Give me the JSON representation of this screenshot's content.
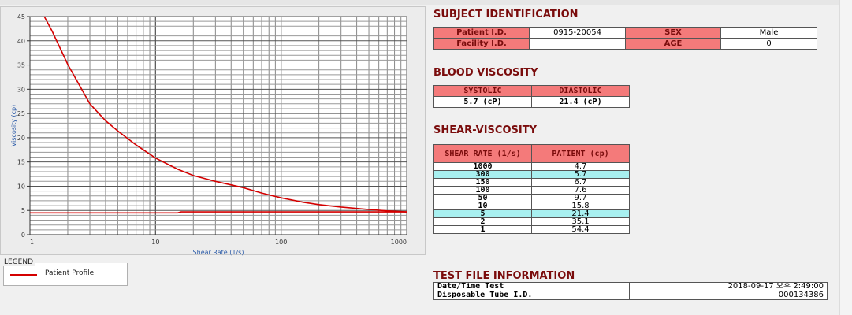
{
  "chart_data": {
    "type": "line",
    "xscale": "log",
    "xlim": [
      1,
      1000
    ],
    "ylim": [
      0,
      45
    ],
    "xlabel": "Shear Rate (1/s)",
    "ylabel": "Viscosity (cp)",
    "x_ticks": [
      "1",
      "10",
      "100",
      "1000"
    ],
    "y_ticks": [
      "0",
      "5",
      "10",
      "15",
      "20",
      "25",
      "30",
      "35",
      "40",
      "45"
    ],
    "grid": true,
    "series": [
      {
        "name": "Patient Profile",
        "color": "#d40000",
        "x": [
          1.3,
          1.5,
          2,
          3,
          4,
          5,
          7,
          10,
          15,
          20,
          30,
          50,
          70,
          100,
          150,
          200,
          300,
          500,
          700,
          1000
        ],
        "y": [
          45,
          42,
          35.1,
          27,
          23.5,
          21.4,
          18.5,
          15.8,
          13.5,
          12.2,
          11,
          9.7,
          8.6,
          7.6,
          6.7,
          6.2,
          5.7,
          5.2,
          4.9,
          4.7
        ]
      },
      {
        "name": "",
        "color": "#d40000",
        "x": [
          1,
          15,
          16,
          1000
        ],
        "y": [
          4.5,
          4.5,
          4.7,
          4.7
        ]
      }
    ]
  },
  "legend": {
    "title": "LEGEND",
    "items": [
      "Patient Profile"
    ]
  },
  "subject": {
    "title": "SUBJECT IDENTIFICATION",
    "patient_id_label": "Patient I.D.",
    "patient_id": "0915-20054",
    "sex_label": "SEX",
    "sex": "Male",
    "facility_label": "Facility I.D.",
    "facility": "",
    "age_label": "AGE",
    "age": "0"
  },
  "blood": {
    "title": "BLOOD VISCOSITY",
    "systolic_label": "SYSTOLIC",
    "diastolic_label": "DIASTOLIC",
    "systolic": "5.7 (cP)",
    "diastolic": "21.4 (cP)"
  },
  "shear": {
    "title": "SHEAR-VISCOSITY",
    "col1": "SHEAR RATE (1/s)",
    "col2": "PATIENT (cp)",
    "rows": [
      {
        "rate": "1000",
        "val": "4.7",
        "hl": false
      },
      {
        "rate": "300",
        "val": "5.7",
        "hl": true
      },
      {
        "rate": "150",
        "val": "6.7",
        "hl": false
      },
      {
        "rate": "100",
        "val": "7.6",
        "hl": false
      },
      {
        "rate": "50",
        "val": "9.7",
        "hl": false
      },
      {
        "rate": "10",
        "val": "15.8",
        "hl": false
      },
      {
        "rate": "5",
        "val": "21.4",
        "hl": true
      },
      {
        "rate": "2",
        "val": "35.1",
        "hl": false
      },
      {
        "rate": "1",
        "val": "54.4",
        "hl": false
      }
    ]
  },
  "testfile": {
    "title": "TEST FILE INFORMATION",
    "date_label": "Date/Time Test",
    "date": "2018-09-17  오후 2:49:00",
    "tube_label": "Disposable Tube I.D.",
    "tube": "000134386"
  }
}
